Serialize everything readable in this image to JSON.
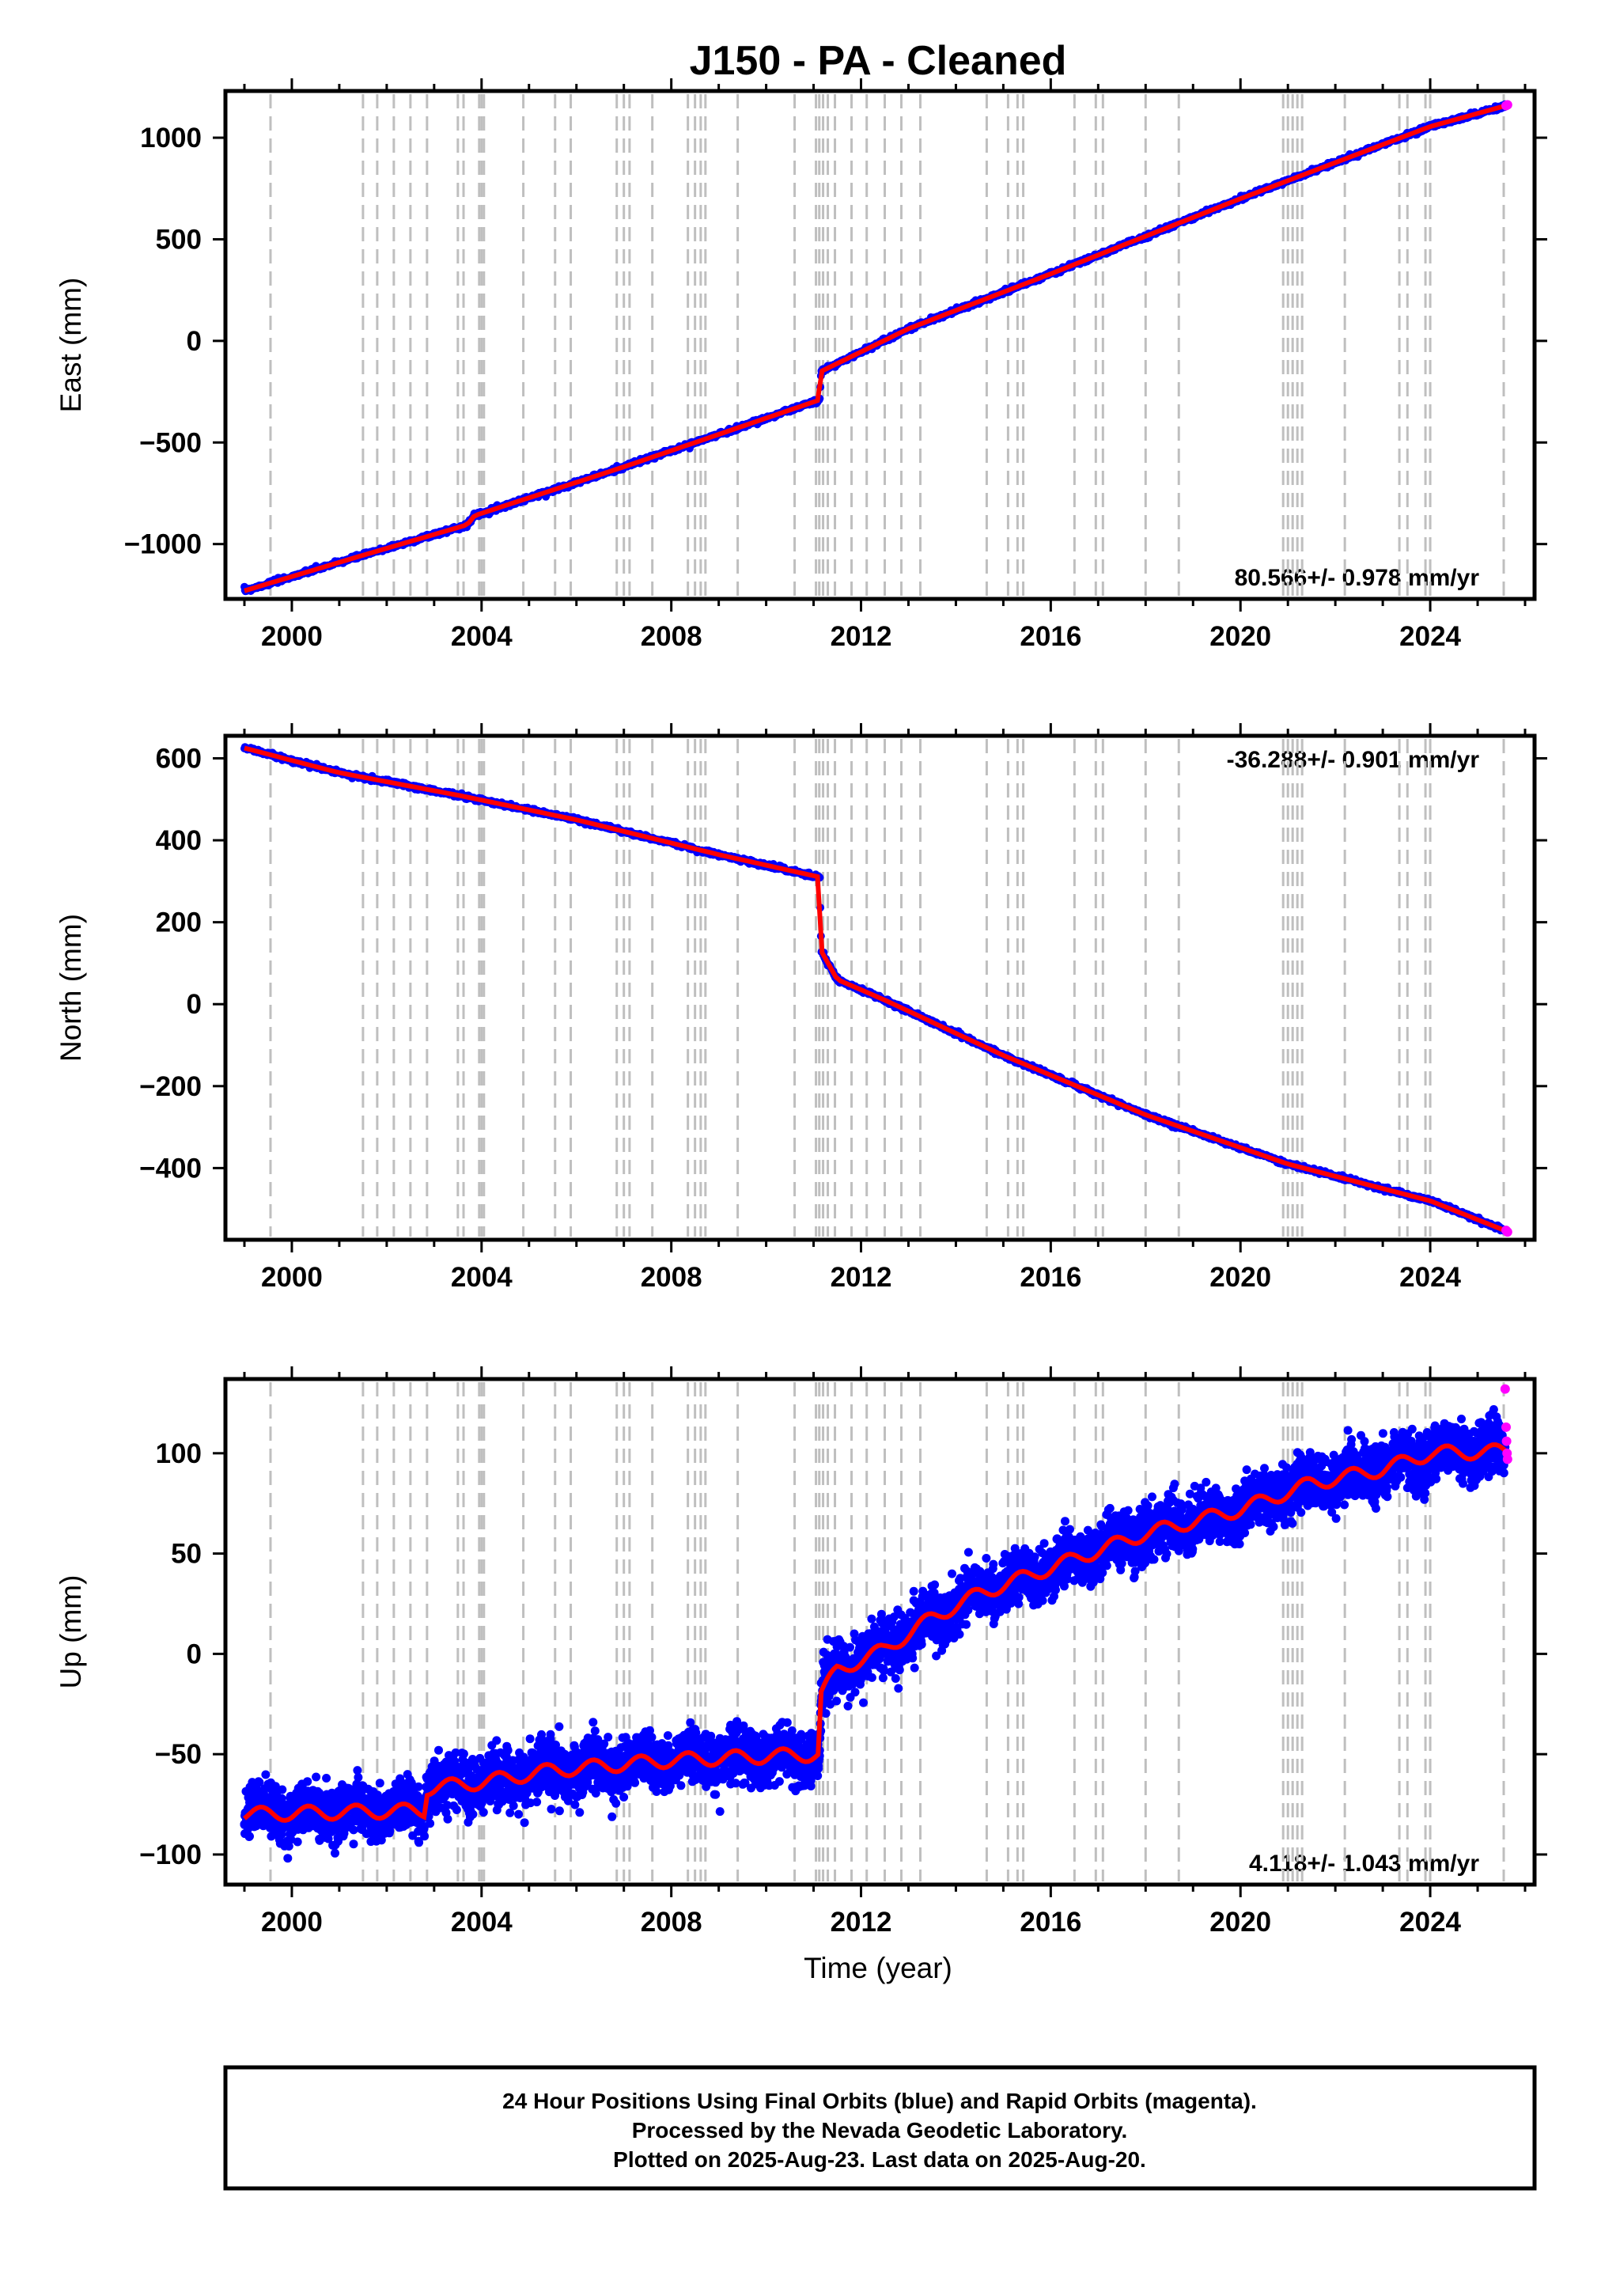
{
  "title": "J150  - PA - Cleaned",
  "x_ticks": [
    2000,
    2004,
    2008,
    2012,
    2016,
    2020,
    2024
  ],
  "x_axis_label": "Time (year)",
  "footer": {
    "line1": "24 Hour Positions Using Final Orbits (blue) and Rapid Orbits (magenta).",
    "line2": "Processed by the Nevada Geodetic Laboratory.",
    "line3": "Plotted on 2025-Aug-23. Last data on 2025-Aug-20."
  },
  "colors": {
    "final_orbits": "#0000ff",
    "rapid_orbits": "#ff00ff",
    "model_fit": "#ff0000",
    "event_lines": "#bfbfbf",
    "frame": "#000000"
  },
  "chart_data": [
    {
      "type": "scatter",
      "component": "east",
      "ylabel": "East (mm)",
      "ylim": [
        -1270,
        1230
      ],
      "xlim": [
        1998.6,
        2026.2
      ],
      "y_ticks": [
        -1000,
        -500,
        0,
        500,
        1000
      ],
      "y_tick_labels": [
        "−1000",
        "−500",
        "0",
        "500",
        "1000"
      ],
      "rate_label": "80.566+/- 0.978 mm/yr",
      "rate_position": "bottom-right",
      "points": [
        [
          1999.0,
          -1230
        ],
        [
          2001.5,
          -1055
        ],
        [
          2003.7,
          -905
        ],
        [
          2003.85,
          -860
        ],
        [
          2007.0,
          -620
        ],
        [
          2011.13,
          -290
        ],
        [
          2011.16,
          -150
        ],
        [
          2013.0,
          60
        ],
        [
          2016.0,
          330
        ],
        [
          2020.0,
          700
        ],
        [
          2024.0,
          1055
        ],
        [
          2025.63,
          1160
        ]
      ],
      "rapid_points": [
        [
          2025.6,
          1158
        ],
        [
          2025.63,
          1162
        ]
      ]
    },
    {
      "type": "scatter",
      "component": "north",
      "ylabel": "North (mm)",
      "ylim": [
        -575,
        655
      ],
      "xlim": [
        1998.6,
        2026.2
      ],
      "y_ticks": [
        -400,
        -200,
        0,
        200,
        400,
        600
      ],
      "y_tick_labels": [
        "−400",
        "−200",
        "0",
        "200",
        "400",
        "600"
      ],
      "rate_label": "-36.288+/- 0.901 mm/yr",
      "rate_position": "top-right",
      "points": [
        [
          1999.0,
          625
        ],
        [
          2001.0,
          565
        ],
        [
          2003.5,
          510
        ],
        [
          2006.0,
          450
        ],
        [
          2009.0,
          365
        ],
        [
          2011.13,
          310
        ],
        [
          2011.16,
          130
        ],
        [
          2011.5,
          60
        ],
        [
          2012.5,
          10
        ],
        [
          2015.0,
          -125
        ],
        [
          2018.0,
          -270
        ],
        [
          2021.0,
          -390
        ],
        [
          2024.0,
          -480
        ],
        [
          2025.63,
          -555
        ]
      ],
      "rapid_points": [
        [
          2025.6,
          -552
        ],
        [
          2025.63,
          -556
        ]
      ]
    },
    {
      "type": "scatter",
      "component": "up",
      "ylabel": "Up (mm)",
      "ylim": [
        -115,
        137
      ],
      "xlim": [
        1998.6,
        2026.2
      ],
      "y_ticks": [
        -100,
        -50,
        0,
        50,
        100
      ],
      "y_tick_labels": [
        "−100",
        "−50",
        "0",
        "50",
        "100"
      ],
      "rate_label": "4.118+/- 1.043 mm/yr",
      "rate_position": "bottom-right",
      "points": [
        [
          1999.0,
          -80
        ],
        [
          2002.8,
          -78
        ],
        [
          2002.85,
          -67
        ],
        [
          2004.0,
          -64
        ],
        [
          2005.5,
          -58
        ],
        [
          2008.0,
          -53
        ],
        [
          2011.13,
          -50
        ],
        [
          2011.16,
          -20
        ],
        [
          2011.5,
          -8
        ],
        [
          2012.5,
          2
        ],
        [
          2013.5,
          18
        ],
        [
          2014.5,
          30
        ],
        [
          2016.0,
          43
        ],
        [
          2018.0,
          60
        ],
        [
          2020.0,
          72
        ],
        [
          2021.5,
          85
        ],
        [
          2023.0,
          92
        ],
        [
          2024.0,
          100
        ],
        [
          2025.63,
          101
        ]
      ],
      "rapid_points": [
        [
          2025.58,
          132
        ],
        [
          2025.6,
          113
        ],
        [
          2025.61,
          106
        ],
        [
          2025.62,
          100
        ],
        [
          2025.63,
          97
        ]
      ]
    }
  ],
  "event_lines_x": [
    1999.55,
    2001.5,
    2001.8,
    2002.15,
    2002.5,
    2002.85,
    2003.5,
    2003.62,
    2003.95,
    2004.0,
    2004.05,
    2004.88,
    2005.55,
    2005.88,
    2006.85,
    2007.0,
    2007.12,
    2007.6,
    2008.35,
    2008.5,
    2008.62,
    2008.72,
    2009.4,
    2010.6,
    2011.05,
    2011.12,
    2011.2,
    2011.3,
    2011.45,
    2011.8,
    2012.12,
    2012.5,
    2012.85,
    2013.25,
    2014.65,
    2015.1,
    2015.3,
    2015.42,
    2016.5,
    2016.95,
    2017.1,
    2018.0,
    2018.7,
    2020.9,
    2021.0,
    2021.1,
    2021.2,
    2021.3,
    2022.2,
    2023.35,
    2023.52,
    2023.9,
    2024.0,
    2025.55
  ]
}
